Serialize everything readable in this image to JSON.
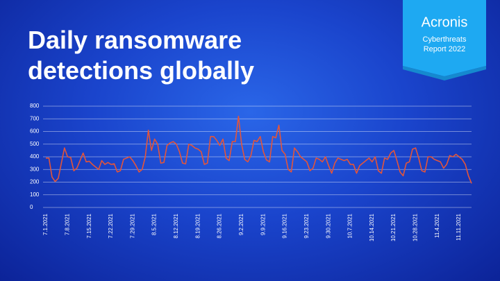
{
  "chart_data": {
    "type": "line",
    "title": "Daily ransomware detections globally",
    "categories": [
      "7.1.2021",
      null,
      null,
      null,
      null,
      null,
      null,
      "7.8.2021",
      null,
      null,
      null,
      null,
      null,
      null,
      "7.15.2021",
      null,
      null,
      null,
      null,
      null,
      null,
      "7.22.2021",
      null,
      null,
      null,
      null,
      null,
      null,
      "7.29.2021",
      null,
      null,
      null,
      null,
      null,
      null,
      "8.5.2021",
      null,
      null,
      null,
      null,
      null,
      null,
      "8.12.2021",
      null,
      null,
      null,
      null,
      null,
      null,
      "8.19.2021",
      null,
      null,
      null,
      null,
      null,
      null,
      "8.26.2021",
      null,
      null,
      null,
      null,
      null,
      null,
      "9.2.2021",
      null,
      null,
      null,
      null,
      null,
      null,
      "9.9.2021",
      null,
      null,
      null,
      null,
      null,
      null,
      "9.16.2021",
      null,
      null,
      null,
      null,
      null,
      null,
      "9.23.2021",
      null,
      null,
      null,
      null,
      null,
      null,
      "9.30.2021",
      null,
      null,
      null,
      null,
      null,
      null,
      "10.7.2021",
      null,
      null,
      null,
      null,
      null,
      null,
      "10.14.2021",
      null,
      null,
      null,
      null,
      null,
      null,
      "10.21.2021",
      null,
      null,
      null,
      null,
      null,
      null,
      "10.28.2021",
      null,
      null,
      null,
      null,
      null,
      null,
      "11.4.2021",
      null,
      null,
      null,
      null,
      null,
      null,
      "11.11.2021",
      null,
      null,
      null,
      null
    ],
    "values": [
      390,
      390,
      240,
      205,
      230,
      350,
      470,
      400,
      395,
      290,
      310,
      370,
      430,
      360,
      365,
      340,
      320,
      300,
      370,
      340,
      355,
      340,
      345,
      280,
      290,
      380,
      390,
      400,
      370,
      330,
      280,
      300,
      400,
      610,
      450,
      540,
      500,
      350,
      355,
      490,
      510,
      520,
      500,
      440,
      350,
      345,
      500,
      490,
      470,
      460,
      440,
      340,
      350,
      560,
      560,
      530,
      490,
      540,
      390,
      370,
      520,
      520,
      720,
      500,
      380,
      360,
      410,
      530,
      520,
      560,
      440,
      375,
      360,
      560,
      550,
      650,
      450,
      420,
      300,
      280,
      470,
      440,
      400,
      380,
      360,
      290,
      310,
      390,
      380,
      360,
      400,
      330,
      270,
      350,
      390,
      380,
      370,
      380,
      340,
      340,
      270,
      330,
      350,
      370,
      390,
      360,
      400,
      290,
      270,
      390,
      380,
      430,
      450,
      370,
      280,
      250,
      350,
      360,
      460,
      470,
      390,
      290,
      280,
      400,
      400,
      380,
      370,
      360,
      310,
      340,
      410,
      400,
      420,
      400,
      380,
      340,
      250,
      190
    ],
    "color": "#e4553a",
    "ylim": [
      0,
      800
    ],
    "yticks": [
      0,
      100,
      200,
      300,
      400,
      500,
      600,
      700,
      800
    ],
    "grid": true
  },
  "badge": {
    "brand": "Acronis",
    "line1": "Cyberthreats",
    "line2": "Report 2022"
  }
}
